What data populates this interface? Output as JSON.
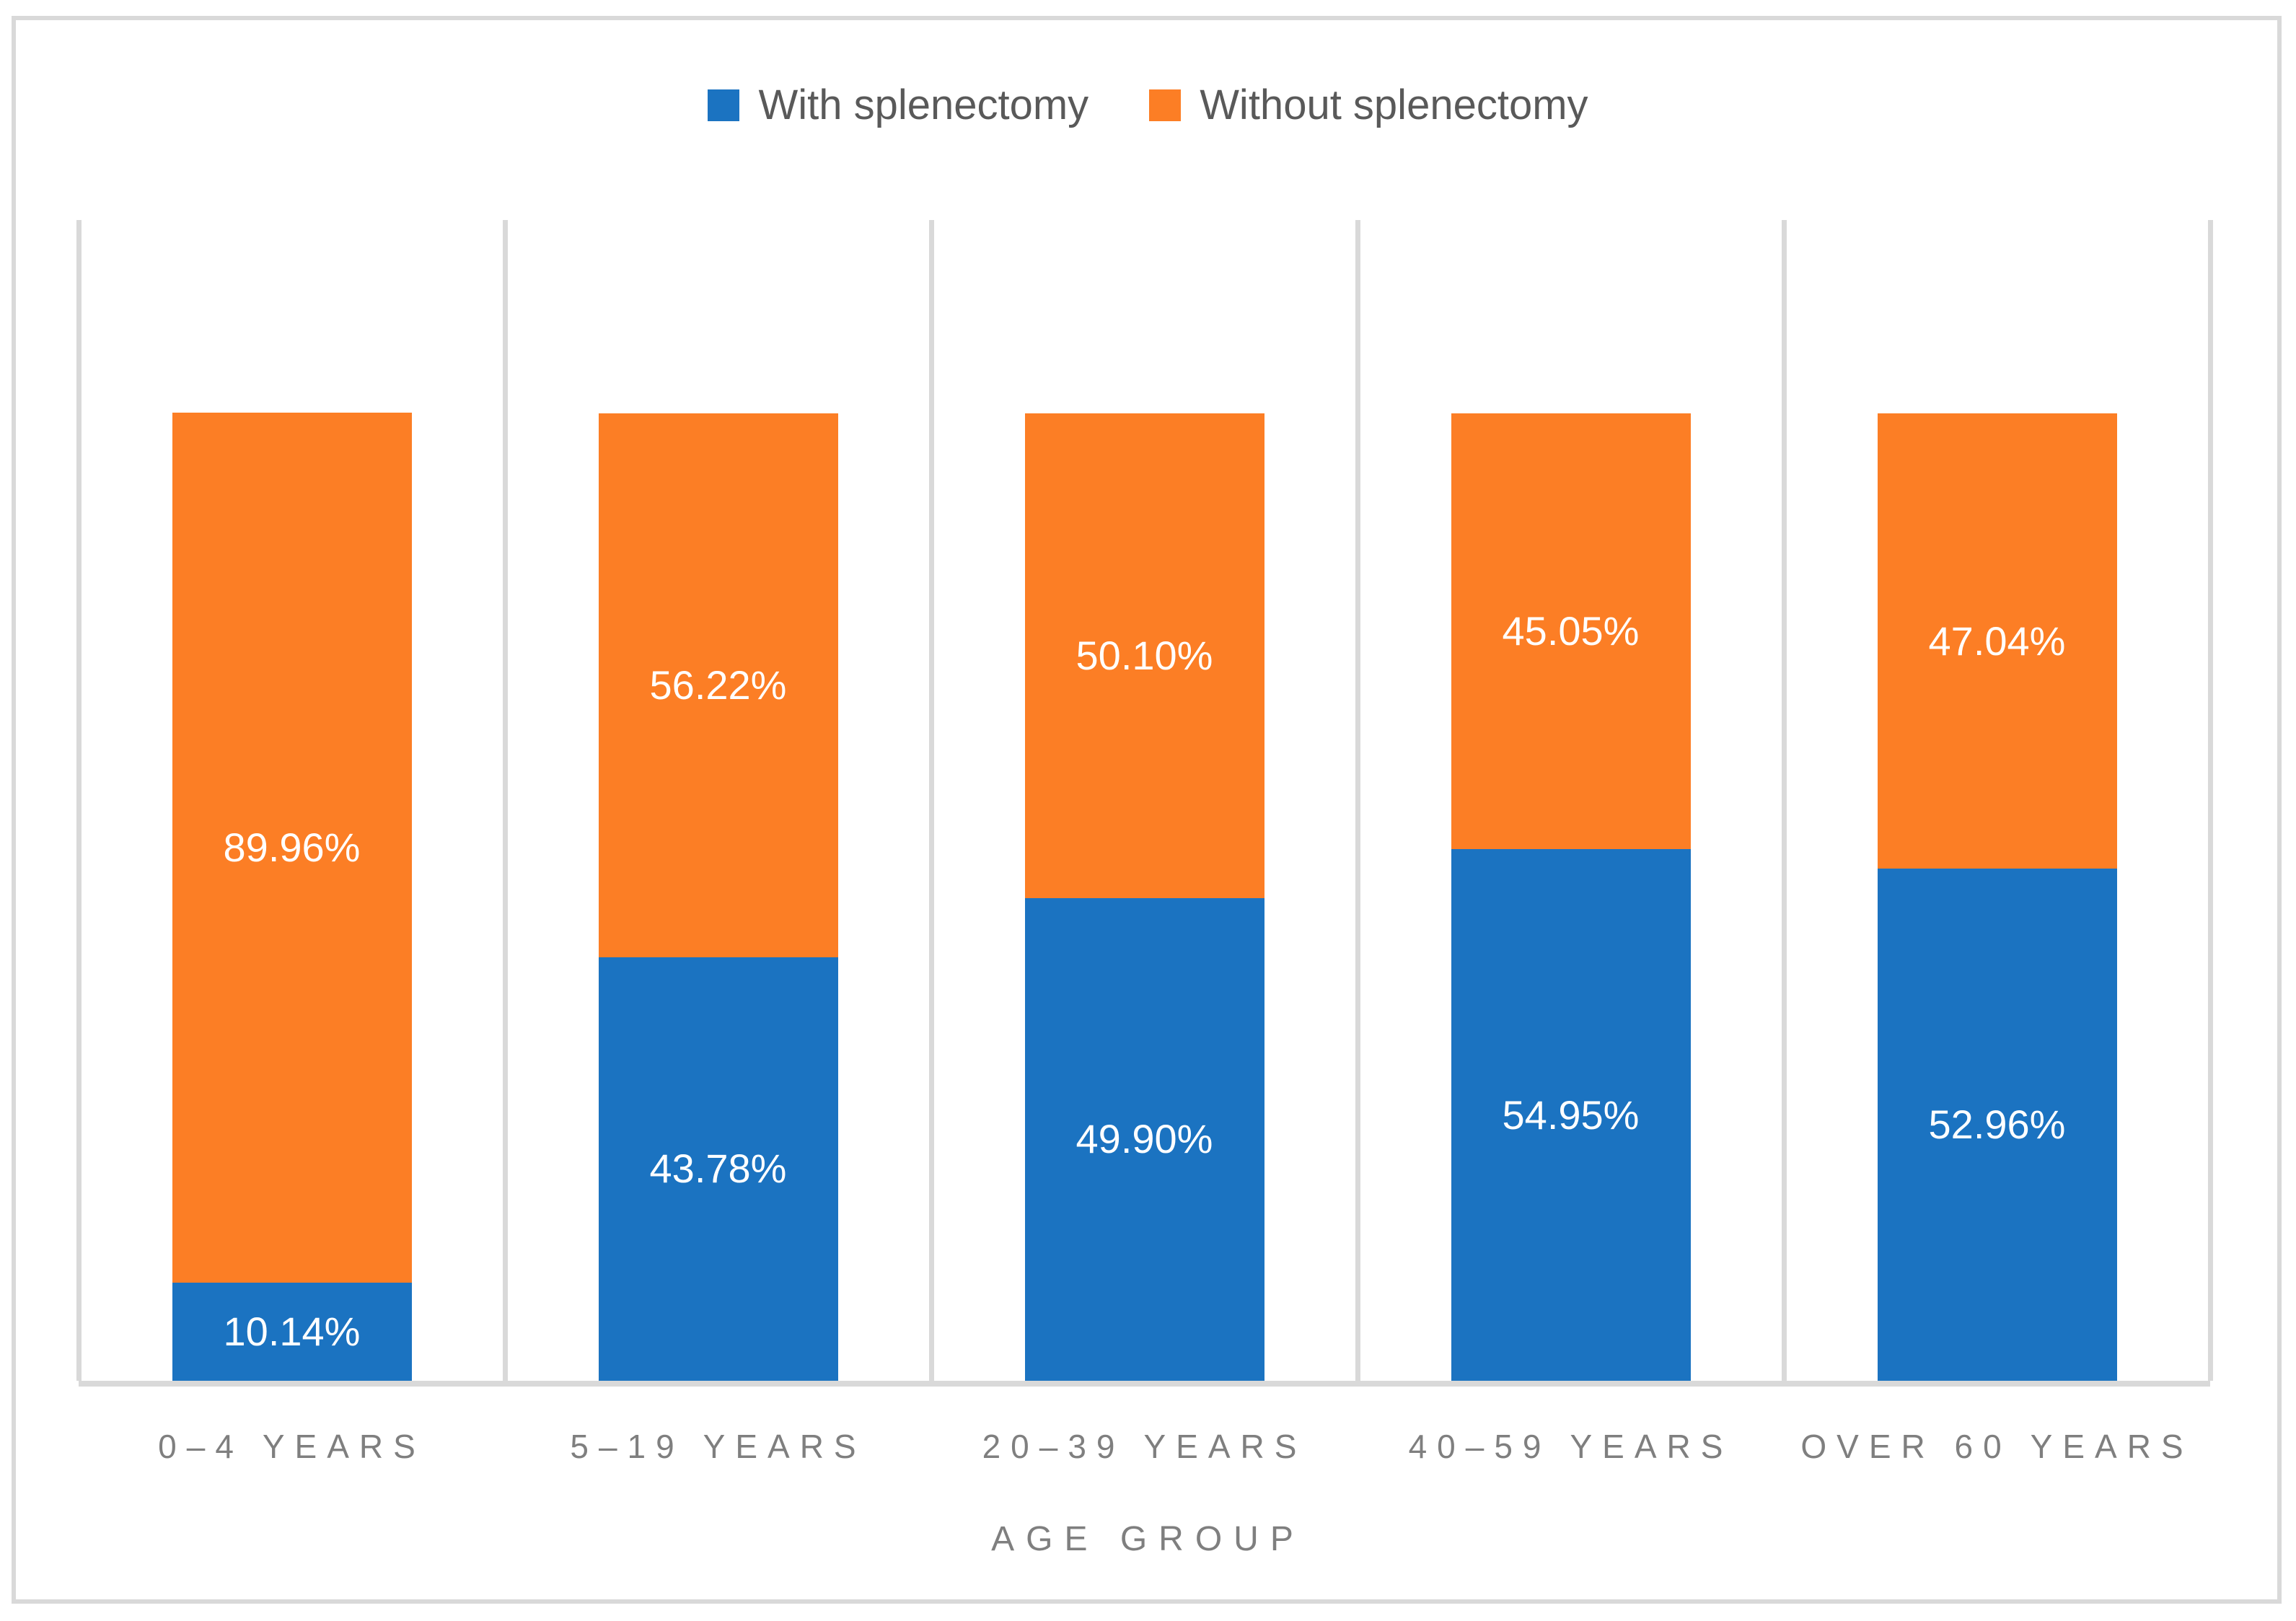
{
  "figure": {
    "background": "#ffffff",
    "border_color": "#d9d9d9",
    "gridline_color": "#d9d9d9",
    "axis_line_color": "#d9d9d9",
    "text_gray": "#7f7f7f",
    "legend_text_gray": "#595959",
    "data_label_color": "#ffffff"
  },
  "legend": {
    "items": [
      {
        "label": "With splenectomy",
        "color": "#1b73c1",
        "swatch": "blue-square-icon"
      },
      {
        "label": "Without splenectomy",
        "color": "#fc7e25",
        "swatch": "orange-square-icon"
      }
    ]
  },
  "chart_data": {
    "type": "bar",
    "stacked": true,
    "orientation": "vertical",
    "categories": [
      "0–4 YEARS",
      "5–19 YEARS",
      "20–39 YEARS",
      "40–59 YEARS",
      "OVER 60 YEARS"
    ],
    "series": [
      {
        "name": "With splenectomy",
        "color": "#1b73c1",
        "values": [
          10.14,
          43.78,
          49.9,
          54.95,
          52.96
        ],
        "labels": [
          "10.14%",
          "43.78%",
          "49.90%",
          "54.95%",
          "52.96%"
        ]
      },
      {
        "name": "Without splenectomy",
        "color": "#fc7e25",
        "values": [
          89.96,
          56.22,
          50.1,
          45.05,
          47.04
        ],
        "labels": [
          "89.96%",
          "56.22%",
          "50.10%",
          "45.05%",
          "47.04%"
        ]
      }
    ],
    "xlabel": "AGE GROUP",
    "ylabel": "",
    "ylim": [
      0,
      120
    ],
    "value_format": "percent",
    "grid": "vertical category separators only, no horizontal gridlines, no y-axis labels",
    "legend_position": "top-center",
    "data_labels": "centered inside each segment"
  }
}
